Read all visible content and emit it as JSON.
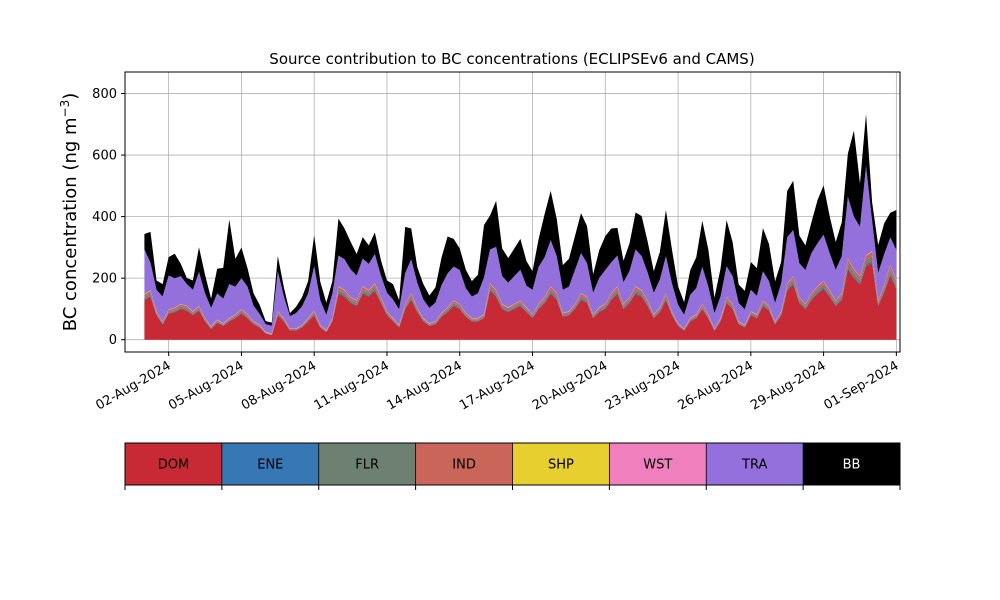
{
  "chart_data": {
    "type": "area",
    "stacked": true,
    "title": "Source contribution to BC concentrations (ECLIPSEv6 and CAMS)",
    "ylabel_main": "BC concentration (ng m",
    "ylabel_sup": "−3",
    "ylabel_close": ")",
    "xlabel": "",
    "ylim": [
      -40,
      870
    ],
    "yticks": [
      0,
      200,
      400,
      600,
      800
    ],
    "xlim": [
      -0.8,
      31.15
    ],
    "xticks": [
      {
        "pos": 1,
        "label": "02-Aug-2024"
      },
      {
        "pos": 4,
        "label": "05-Aug-2024"
      },
      {
        "pos": 7,
        "label": "08-Aug-2024"
      },
      {
        "pos": 10,
        "label": "11-Aug-2024"
      },
      {
        "pos": 13,
        "label": "14-Aug-2024"
      },
      {
        "pos": 16,
        "label": "17-Aug-2024"
      },
      {
        "pos": 19,
        "label": "20-Aug-2024"
      },
      {
        "pos": 22,
        "label": "23-Aug-2024"
      },
      {
        "pos": 25,
        "label": "26-Aug-2024"
      },
      {
        "pos": 28,
        "label": "29-Aug-2024"
      },
      {
        "pos": 31,
        "label": "01-Sep-2024"
      }
    ],
    "x_units": "days after 01-Aug-2024 00:00",
    "grid": true,
    "legend_placement": "bottom colorbar",
    "x": [
      0.0,
      0.25,
      0.5,
      0.75,
      1.0,
      1.25,
      1.5,
      1.75,
      2.0,
      2.25,
      2.5,
      2.75,
      3.0,
      3.25,
      3.5,
      3.75,
      4.0,
      4.25,
      4.5,
      4.75,
      5.0,
      5.25,
      5.5,
      5.75,
      6.0,
      6.25,
      6.5,
      6.75,
      7.0,
      7.25,
      7.5,
      7.75,
      8.0,
      8.25,
      8.5,
      8.75,
      9.0,
      9.25,
      9.5,
      9.75,
      10.0,
      10.25,
      10.5,
      10.75,
      11.0,
      11.25,
      11.5,
      11.75,
      12.0,
      12.25,
      12.5,
      12.75,
      13.0,
      13.25,
      13.5,
      13.75,
      14.0,
      14.25,
      14.5,
      14.75,
      15.0,
      15.25,
      15.5,
      15.75,
      16.0,
      16.25,
      16.5,
      16.75,
      17.0,
      17.25,
      17.5,
      17.75,
      18.0,
      18.25,
      18.5,
      18.75,
      19.0,
      19.25,
      19.5,
      19.75,
      20.0,
      20.25,
      20.5,
      20.75,
      21.0,
      21.25,
      21.5,
      21.75,
      22.0,
      22.25,
      22.5,
      22.75,
      23.0,
      23.25,
      23.5,
      23.75,
      24.0,
      24.25,
      24.5,
      24.75,
      25.0,
      25.25,
      25.5,
      25.75,
      26.0,
      26.25,
      26.5,
      26.75,
      27.0,
      27.25,
      27.5,
      27.75,
      28.0,
      28.25,
      28.5,
      28.75,
      29.0,
      29.25,
      29.5,
      29.75,
      30.0,
      30.25,
      30.5,
      30.75,
      31.0
    ],
    "series": [
      {
        "name": "DOM",
        "color": "#c72a35",
        "values": [
          130,
          140,
          80,
          50,
          85,
          90,
          100,
          95,
          80,
          95,
          60,
          35,
          55,
          45,
          60,
          70,
          85,
          70,
          50,
          40,
          20,
          15,
          80,
          60,
          30,
          30,
          40,
          60,
          80,
          40,
          25,
          60,
          150,
          140,
          120,
          110,
          150,
          140,
          160,
          120,
          80,
          60,
          40,
          100,
          130,
          90,
          60,
          45,
          50,
          75,
          90,
          110,
          100,
          75,
          60,
          60,
          70,
          160,
          140,
          100,
          90,
          100,
          110,
          90,
          70,
          100,
          120,
          150,
          130,
          75,
          80,
          100,
          130,
          120,
          70,
          90,
          100,
          130,
          150,
          100,
          120,
          150,
          140,
          110,
          70,
          90,
          130,
          80,
          45,
          30,
          60,
          70,
          100,
          70,
          30,
          60,
          120,
          100,
          50,
          40,
          80,
          70,
          110,
          95,
          50,
          80,
          160,
          180,
          120,
          100,
          130,
          150,
          165,
          140,
          110,
          130,
          230,
          200,
          180,
          240,
          250,
          110,
          155,
          210,
          165
        ]
      },
      {
        "name": "ENE",
        "color": "#3778b4",
        "values": [
          3,
          3,
          2,
          2,
          2,
          2,
          3,
          3,
          2,
          3,
          2,
          2,
          2,
          2,
          2,
          2,
          3,
          2,
          2,
          2,
          1,
          1,
          2,
          2,
          1,
          1,
          2,
          2,
          3,
          2,
          1,
          2,
          4,
          4,
          3,
          3,
          4,
          4,
          4,
          3,
          2,
          2,
          2,
          3,
          4,
          3,
          2,
          2,
          2,
          2,
          3,
          3,
          3,
          2,
          2,
          2,
          2,
          4,
          4,
          3,
          3,
          3,
          3,
          3,
          2,
          3,
          3,
          4,
          4,
          2,
          2,
          3,
          4,
          3,
          2,
          3,
          3,
          4,
          4,
          3,
          3,
          4,
          4,
          3,
          2,
          3,
          4,
          2,
          2,
          1,
          2,
          2,
          3,
          2,
          1,
          2,
          3,
          3,
          2,
          2,
          2,
          2,
          3,
          3,
          2,
          2,
          4,
          5,
          3,
          3,
          4,
          4,
          5,
          4,
          3,
          4,
          6,
          5,
          5,
          6,
          7,
          3,
          4,
          6,
          5
        ]
      },
      {
        "name": "FLR",
        "color": "#6e8071",
        "values": [
          6,
          7,
          4,
          3,
          4,
          5,
          5,
          5,
          4,
          5,
          3,
          2,
          3,
          2,
          3,
          4,
          4,
          4,
          3,
          2,
          1,
          1,
          4,
          3,
          2,
          2,
          2,
          3,
          4,
          2,
          1,
          3,
          8,
          7,
          6,
          6,
          8,
          7,
          8,
          6,
          4,
          3,
          2,
          5,
          7,
          5,
          3,
          2,
          3,
          4,
          5,
          6,
          5,
          4,
          3,
          3,
          4,
          8,
          7,
          5,
          5,
          5,
          6,
          5,
          4,
          5,
          6,
          8,
          7,
          4,
          4,
          5,
          7,
          6,
          4,
          5,
          5,
          7,
          8,
          5,
          6,
          8,
          7,
          6,
          4,
          5,
          7,
          4,
          2,
          2,
          3,
          4,
          5,
          4,
          2,
          3,
          6,
          5,
          3,
          2,
          4,
          4,
          6,
          5,
          3,
          4,
          8,
          9,
          6,
          5,
          7,
          8,
          9,
          7,
          6,
          7,
          12,
          10,
          9,
          12,
          13,
          6,
          8,
          11,
          9
        ]
      },
      {
        "name": "IND",
        "color": "#c96659",
        "values": [
          8,
          9,
          5,
          4,
          6,
          6,
          7,
          6,
          5,
          6,
          4,
          3,
          4,
          3,
          4,
          5,
          6,
          5,
          4,
          3,
          2,
          2,
          5,
          4,
          2,
          2,
          3,
          4,
          6,
          3,
          2,
          4,
          10,
          9,
          8,
          8,
          10,
          9,
          10,
          8,
          5,
          4,
          3,
          7,
          9,
          6,
          4,
          3,
          4,
          5,
          6,
          7,
          7,
          5,
          4,
          4,
          5,
          10,
          9,
          7,
          6,
          7,
          7,
          6,
          5,
          7,
          8,
          10,
          9,
          5,
          5,
          7,
          9,
          8,
          5,
          6,
          7,
          9,
          10,
          7,
          8,
          10,
          9,
          7,
          5,
          6,
          9,
          5,
          3,
          2,
          4,
          5,
          7,
          5,
          2,
          4,
          8,
          7,
          3,
          3,
          5,
          5,
          7,
          6,
          3,
          5,
          10,
          11,
          8,
          7,
          9,
          10,
          11,
          9,
          7,
          9,
          15,
          13,
          12,
          15,
          16,
          7,
          10,
          14,
          11
        ]
      },
      {
        "name": "SHP",
        "color": "#e6cf2e",
        "values": [
          0.5,
          0.5,
          0.5,
          0.5,
          0.5,
          0.5,
          0.5,
          0.5,
          0.5,
          0.5,
          0.5,
          0.5,
          0.5,
          0.5,
          0.5,
          0.5,
          0.5,
          0.5,
          0.5,
          0.5,
          0.5,
          0.5,
          0.5,
          0.5,
          0.5,
          0.5,
          0.5,
          0.5,
          0.5,
          0.5,
          0.5,
          0.5,
          0.5,
          0.5,
          0.5,
          0.5,
          0.5,
          0.5,
          0.5,
          0.5,
          0.5,
          0.5,
          0.5,
          0.5,
          0.5,
          0.5,
          0.5,
          0.5,
          0.5,
          0.5,
          0.5,
          0.5,
          0.5,
          0.5,
          0.5,
          0.5,
          0.5,
          0.5,
          0.5,
          0.5,
          0.5,
          0.5,
          0.5,
          0.5,
          0.5,
          0.5,
          0.5,
          0.5,
          0.5,
          0.5,
          0.5,
          0.5,
          0.5,
          0.5,
          0.5,
          0.5,
          0.5,
          0.5,
          0.5,
          0.5,
          0.5,
          0.5,
          0.5,
          0.5,
          0.5,
          0.5,
          0.5,
          0.5,
          0.5,
          0.5,
          0.5,
          0.5,
          0.5,
          0.5,
          0.5,
          0.5,
          0.5,
          0.5,
          0.5,
          0.5,
          0.5,
          0.5,
          0.5,
          0.5,
          0.5,
          0.5,
          0.5,
          0.5,
          0.5,
          0.5,
          0.5,
          0.5,
          0.5,
          0.5,
          0.5,
          0.5,
          0.5,
          0.5,
          0.5,
          0.5,
          0.5,
          0.5,
          0.5,
          0.5,
          0.5
        ]
      },
      {
        "name": "WST",
        "color": "#f07fbd",
        "values": [
          1,
          1,
          1,
          1,
          1,
          1,
          1,
          1,
          1,
          1,
          1,
          1,
          1,
          1,
          1,
          1,
          1,
          1,
          1,
          1,
          1,
          1,
          1,
          1,
          1,
          1,
          1,
          1,
          1,
          1,
          1,
          1,
          1,
          1,
          1,
          1,
          1,
          1,
          1,
          1,
          1,
          1,
          1,
          1,
          1,
          1,
          1,
          1,
          1,
          1,
          1,
          1,
          1,
          1,
          1,
          1,
          1,
          1,
          1,
          1,
          1,
          1,
          1,
          1,
          1,
          1,
          1,
          1,
          1,
          1,
          1,
          1,
          1,
          1,
          1,
          1,
          1,
          1,
          1,
          1,
          1,
          1,
          1,
          1,
          1,
          1,
          1,
          1,
          1,
          1,
          1,
          1,
          1,
          1,
          1,
          1,
          1,
          1,
          1,
          1,
          1,
          1,
          1,
          1,
          1,
          1,
          1,
          1,
          1,
          1,
          1,
          1,
          1,
          1,
          1,
          1,
          1,
          1,
          1,
          1,
          1,
          1,
          1,
          1,
          1
        ]
      },
      {
        "name": "TRA",
        "color": "#9370db",
        "values": [
          145,
          90,
          70,
          80,
          110,
          95,
          90,
          70,
          70,
          110,
          80,
          60,
          85,
          80,
          110,
          90,
          100,
          90,
          50,
          35,
          25,
          25,
          130,
          70,
          40,
          50,
          60,
          80,
          145,
          80,
          50,
          80,
          100,
          100,
          90,
          80,
          90,
          85,
          95,
          70,
          60,
          60,
          50,
          100,
          110,
          80,
          60,
          50,
          60,
          90,
          110,
          110,
          110,
          80,
          70,
          80,
          120,
          110,
          140,
          90,
          80,
          90,
          100,
          70,
          80,
          120,
          130,
          150,
          120,
          75,
          80,
          110,
          130,
          110,
          70,
          95,
          110,
          100,
          100,
          70,
          85,
          120,
          110,
          90,
          70,
          90,
          120,
          90,
          60,
          45,
          75,
          85,
          120,
          90,
          50,
          70,
          100,
          90,
          60,
          50,
          70,
          60,
          95,
          80,
          60,
          90,
          150,
          150,
          110,
          110,
          130,
          140,
          150,
          120,
          100,
          120,
          200,
          170,
          160,
          290,
          100,
          90,
          100,
          90,
          100
        ]
      },
      {
        "name": "BB",
        "color": "#000000",
        "values": [
          50,
          100,
          30,
          40,
          60,
          80,
          40,
          20,
          30,
          80,
          60,
          30,
          80,
          100,
          210,
          90,
          100,
          60,
          40,
          30,
          10,
          10,
          50,
          30,
          10,
          20,
          30,
          40,
          100,
          60,
          40,
          40,
          120,
          100,
          90,
          70,
          70,
          60,
          70,
          50,
          40,
          50,
          30,
          150,
          100,
          50,
          50,
          40,
          50,
          90,
          120,
          90,
          70,
          60,
          50,
          60,
          170,
          110,
          150,
          90,
          80,
          90,
          100,
          80,
          60,
          90,
          140,
          160,
          120,
          80,
          90,
          110,
          130,
          120,
          60,
          90,
          110,
          110,
          90,
          70,
          90,
          120,
          130,
          100,
          70,
          90,
          150,
          110,
          60,
          40,
          80,
          100,
          150,
          120,
          50,
          90,
          150,
          110,
          60,
          60,
          90,
          90,
          140,
          120,
          70,
          70,
          150,
          160,
          90,
          80,
          100,
          140,
          160,
          120,
          90,
          110,
          140,
          280,
          140,
          170,
          60,
          90,
          100,
          80,
          130
        ]
      }
    ]
  }
}
